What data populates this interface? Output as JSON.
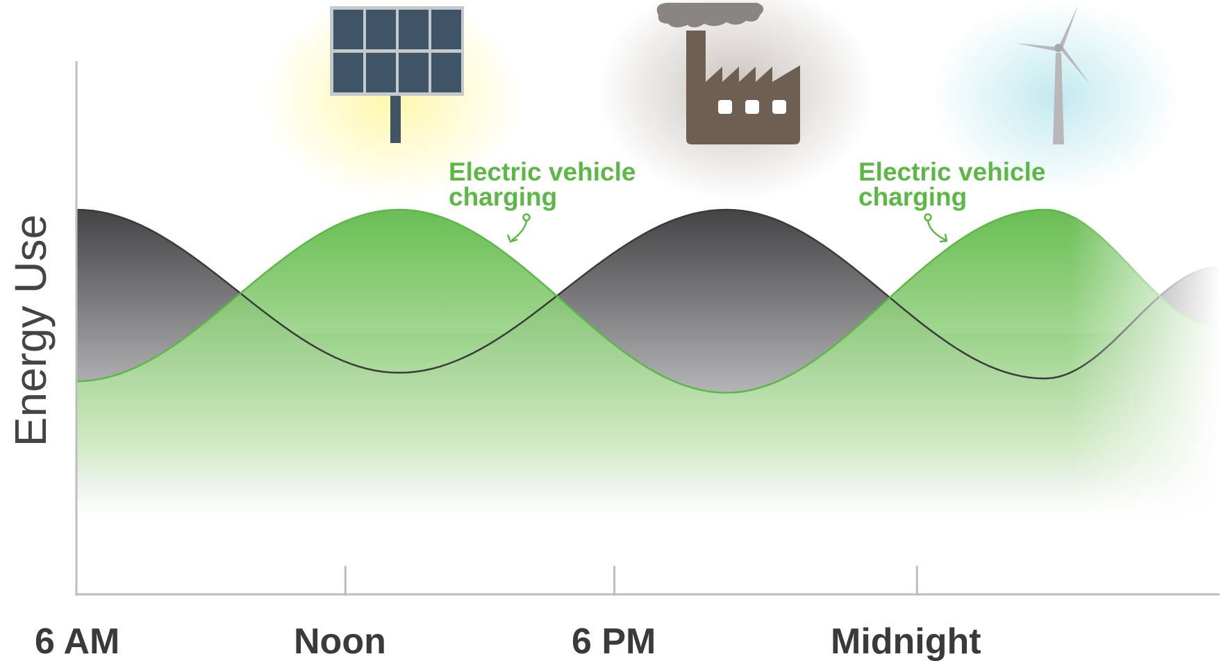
{
  "chart_data": {
    "type": "area",
    "title": "",
    "ylabel": "Energy Use",
    "xlabel": "",
    "x_ticks": [
      "6 AM",
      "Noon",
      "6 PM",
      "Midnight"
    ],
    "x_tick_hours": [
      0,
      6,
      12,
      18.75
    ],
    "x_range_hours": [
      0,
      25.5
    ],
    "y_range": [
      0,
      100
    ],
    "grid": false,
    "legend": "none",
    "series": [
      {
        "color": "#3a3a3a",
        "x_hours": [
          0,
          7.2,
          14.5,
          21.6,
          25.5
        ],
        "values": [
          100,
          43,
          100,
          41,
          80
        ]
      },
      {
        "color": "#5cb845",
        "x_hours": [
          0,
          7.2,
          14.5,
          21.6,
          25.5
        ],
        "values": [
          40,
          100,
          36,
          100,
          59
        ]
      }
    ],
    "annotations": [
      {
        "text_line1": "Electric vehicle",
        "text_line2": "charging",
        "color": "#5cb845"
      },
      {
        "text_line1": "Electric vehicle",
        "text_line2": "charging",
        "color": "#5cb845"
      }
    ],
    "icons": [
      "solar-panel-icon",
      "factory-icon",
      "wind-turbine-icon"
    ]
  }
}
